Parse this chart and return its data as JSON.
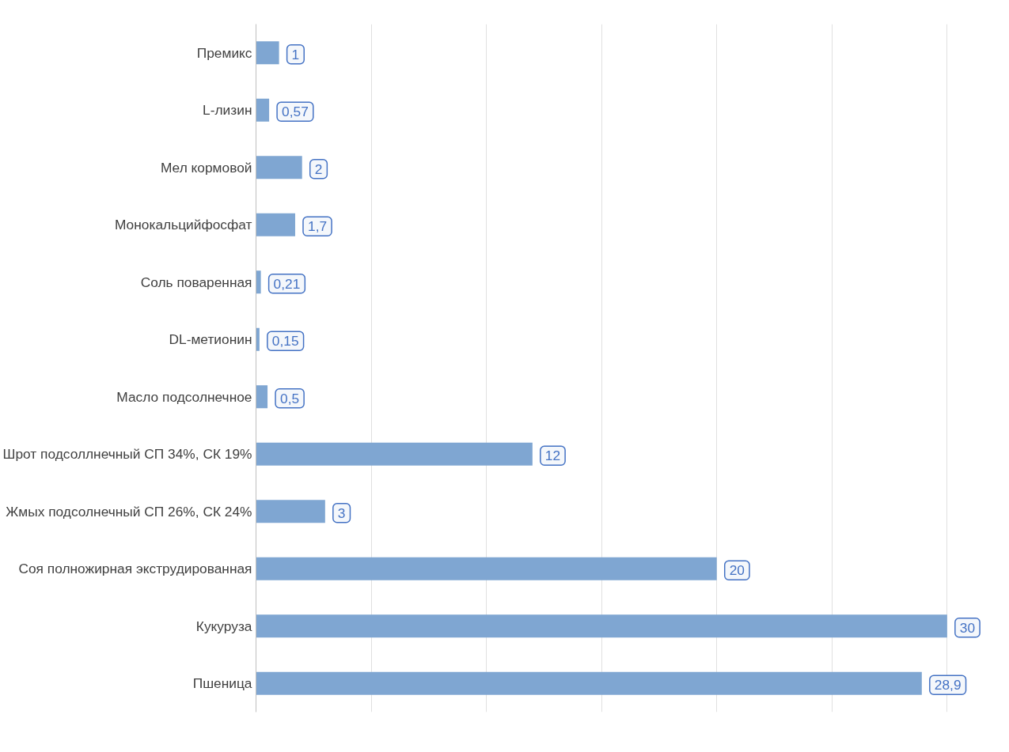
{
  "chart_data": {
    "type": "bar",
    "orientation": "horizontal",
    "categories": [
      "Премикс",
      "L-лизин",
      "Мел кормовой",
      "Монокальцийфосфат",
      "Соль поваренная",
      "DL-метионин",
      "Масло подсолнечное",
      "Шрот подсоллнечный СП 34%, СК 19%",
      "Жмых подсолнечный СП 26%, СК 24%",
      "Соя полножирная экструдированная",
      "Кукуруза",
      "Пшеница"
    ],
    "values": [
      1,
      0.57,
      2,
      1.7,
      0.21,
      0.15,
      0.5,
      12,
      3,
      20,
      30,
      28.9
    ],
    "value_labels": [
      "1",
      "0,57",
      "2",
      "1,7",
      "0,21",
      "0,15",
      "0,5",
      "12",
      "3",
      "20",
      "30",
      "28,9"
    ],
    "color": "#7fa6d2",
    "data_labels": false,
    "grid": "x",
    "tick_labels": "y"
  }
}
